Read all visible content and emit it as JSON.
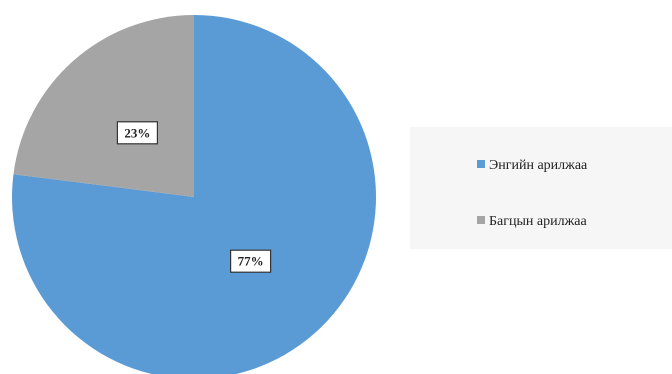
{
  "chart_data": {
    "type": "pie",
    "categories": [
      "Энгийн арилжаа",
      "Багцын арилжаа"
    ],
    "values": [
      77,
      23
    ],
    "data_labels": [
      "77%",
      "23%"
    ],
    "colors": [
      "#5b9bd5",
      "#a5a5a5"
    ],
    "title": "",
    "legend": {
      "position": "right",
      "entries": [
        "Энгийн арилжаа",
        "Багцын арилжаа"
      ]
    }
  }
}
